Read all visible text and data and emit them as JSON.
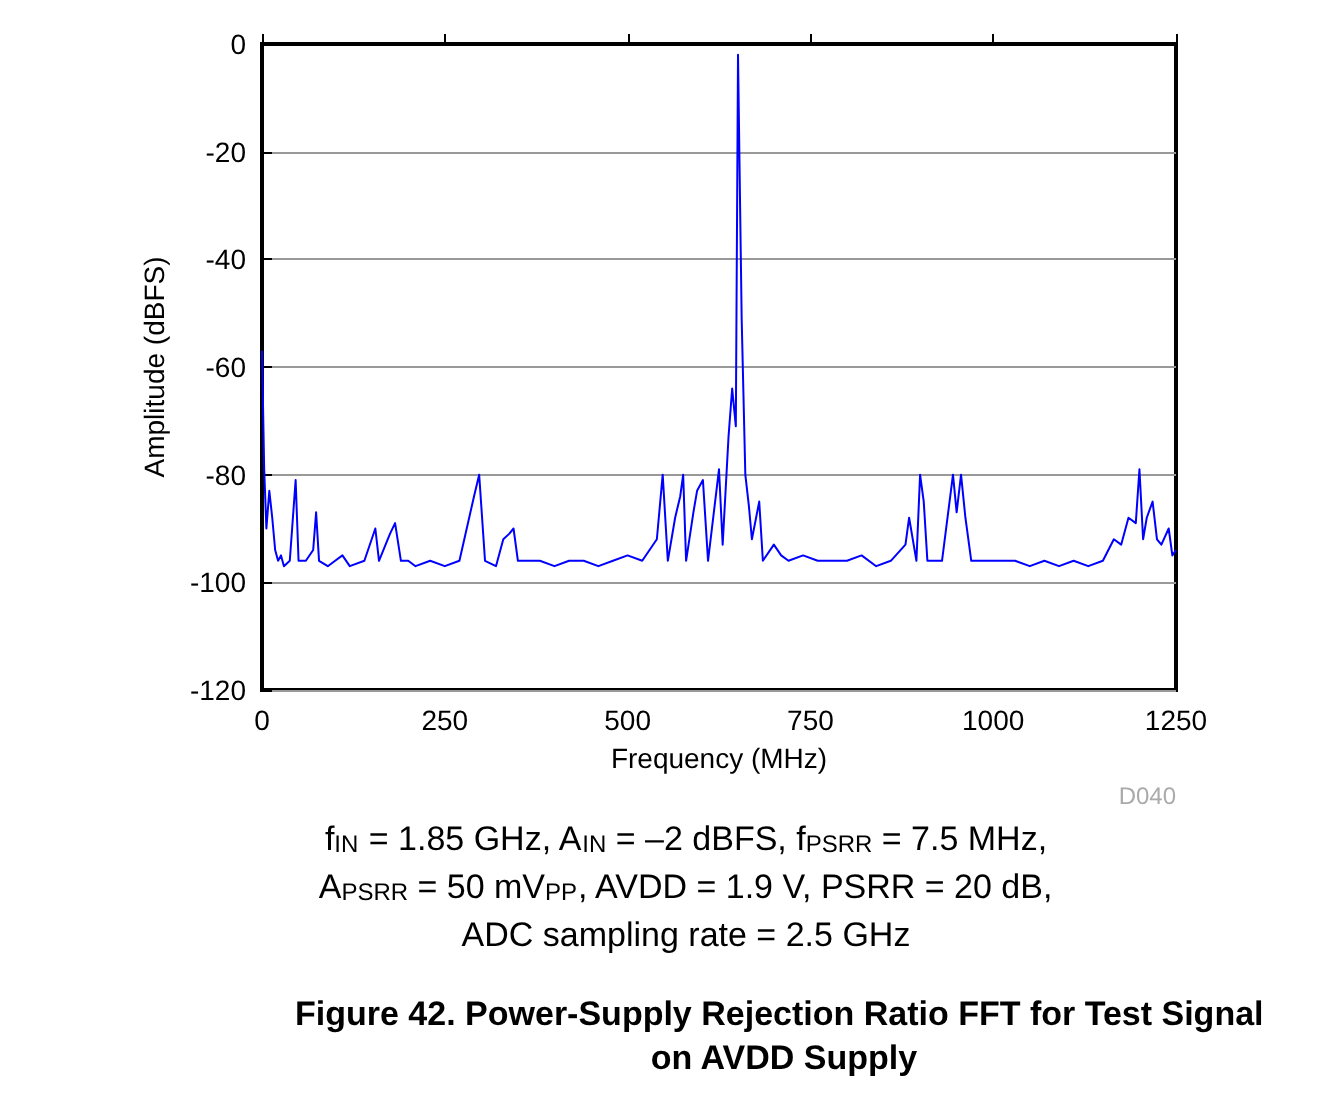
{
  "chart_data": {
    "type": "line",
    "title": "Figure 42. Power-Supply Rejection Ratio FFT for Test Signal on AVDD Supply",
    "xlabel": "Frequency (MHz)",
    "ylabel": "Amplitude (dBFS)",
    "annotations": [
      "D040",
      "f$_{IN}$ = 1.85 GHz, A$_{IN}$ = –2 dBFS, f$_{PSRR}$ = 7.5 MHz,",
      "A$_{PSRR}$ = 50 mV$_{PP}$, AVDD = 1.9 V, PSRR = 20 dB,",
      "ADC sampling rate = 2.5 GHz"
    ],
    "x": [
      0,
      3,
      6,
      10,
      14,
      18,
      22,
      26,
      30,
      38,
      46,
      50,
      60,
      70,
      74,
      78,
      90,
      100,
      110,
      120,
      140,
      155,
      160,
      175,
      182,
      190,
      200,
      210,
      230,
      250,
      270,
      290,
      297,
      305,
      320,
      330,
      338,
      344,
      350,
      370,
      380,
      400,
      420,
      440,
      460,
      480,
      500,
      520,
      540,
      548,
      555,
      565,
      572,
      576,
      580,
      590,
      595,
      603,
      610,
      625,
      630,
      638,
      643,
      648,
      651,
      656,
      661,
      666,
      670,
      680,
      685,
      700,
      710,
      720,
      740,
      760,
      780,
      800,
      820,
      840,
      860,
      880,
      885,
      895,
      900,
      905,
      910,
      930,
      945,
      950,
      956,
      962,
      970,
      990,
      1010,
      1030,
      1050,
      1070,
      1090,
      1110,
      1130,
      1150,
      1165,
      1175,
      1185,
      1195,
      1200,
      1205,
      1210,
      1218,
      1224,
      1230,
      1240,
      1245,
      1250
    ],
    "values": [
      -57,
      -79,
      -90,
      -83,
      -88,
      -94,
      -96,
      -95,
      -97,
      -96,
      -81,
      -96,
      -96,
      -94,
      -87,
      -96,
      -97,
      -96,
      -95,
      -97,
      -96,
      -90,
      -96,
      -91,
      -89,
      -96,
      -96,
      -97,
      -96,
      -97,
      -96,
      -84,
      -80,
      -96,
      -97,
      -92,
      -91,
      -90,
      -96,
      -96,
      -96,
      -97,
      -96,
      -96,
      -97,
      -96,
      -95,
      -96,
      -92,
      -80,
      -96,
      -88,
      -84,
      -80,
      -96,
      -87,
      -83,
      -81,
      -96,
      -79,
      -93,
      -73,
      -64,
      -71,
      -2,
      -51,
      -80,
      -86,
      -92,
      -85,
      -96,
      -93,
      -95,
      -96,
      -95,
      -96,
      -96,
      -96,
      -95,
      -97,
      -96,
      -93,
      -88,
      -96,
      -80,
      -85,
      -96,
      -96,
      -80,
      -87,
      -80,
      -88,
      -96,
      -96,
      -96,
      -96,
      -97,
      -96,
      -97,
      -96,
      -97,
      -96,
      -92,
      -93,
      -88,
      -89,
      -79,
      -92,
      -88,
      -85,
      -92,
      -93,
      -90,
      -95,
      -94
    ],
    "color": "#0000ff",
    "xlim": [
      0,
      1250
    ],
    "xticks": [
      0,
      250,
      500,
      750,
      1000,
      1250
    ],
    "ylim": [
      -120,
      0
    ],
    "yticks": [
      -120,
      -100,
      -80,
      -60,
      -40,
      -20,
      0
    ],
    "grid": "y"
  }
}
